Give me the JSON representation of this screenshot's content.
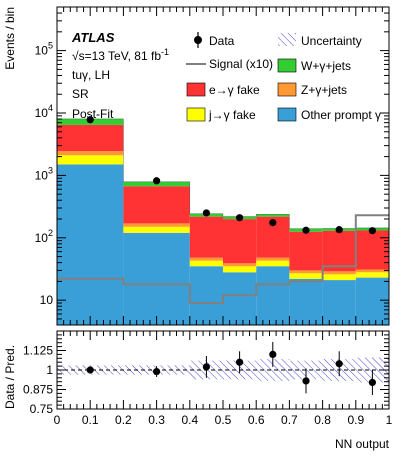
{
  "colors": {
    "other_prompt": "#3a9fd6",
    "jet_fake": "#ffff00",
    "zgamma": "#ff9933",
    "efake": "#ff3333",
    "wgamma": "#33cc33",
    "signal": "#808080",
    "uncertainty": "#3333cc",
    "data": "#000000"
  },
  "labels": {
    "atlas": "ATLAS",
    "energy_prefix": "√s=13 TeV, 81 fb",
    "energy_sup": "-1",
    "channel": "tuγ, LH",
    "region": "SR",
    "fit": "Post-Fit"
  },
  "legend": {
    "data": "Data",
    "uncertainty": "Uncertainty",
    "signal": "Signal (x10)",
    "wgamma": "W+γ+jets",
    "efake": "e→γ fake",
    "zgamma": "Z+γ+jets",
    "jetfake": "j→γ fake",
    "other": "Other prompt γ"
  },
  "chart_data": [
    {
      "type": "bar",
      "stacked": true,
      "log_y": true,
      "ylabel": "Events / bin",
      "ylim": [
        4,
        500000
      ],
      "xlim": [
        0,
        1
      ],
      "y_ticks": [
        {
          "value": 10,
          "label": "10"
        },
        {
          "value": 100,
          "label": "10",
          "sup": "2"
        },
        {
          "value": 1000,
          "label": "10",
          "sup": "3"
        },
        {
          "value": 10000,
          "label": "10",
          "sup": "4"
        },
        {
          "value": 100000,
          "label": "10",
          "sup": "5"
        }
      ],
      "bin_edges": [
        0,
        0.2,
        0.4,
        0.5,
        0.6,
        0.7,
        0.8,
        0.9,
        1.0
      ],
      "series": [
        {
          "name": "Other prompt γ",
          "color": "#3a9fd6",
          "values": [
            1500,
            120,
            35,
            28,
            35,
            22,
            21,
            23
          ]
        },
        {
          "name": "j→γ fake",
          "color": "#ffff00",
          "values": [
            600,
            30,
            8,
            7,
            8,
            5,
            5,
            5
          ]
        },
        {
          "name": "Z+γ+jets",
          "color": "#ff9933",
          "values": [
            350,
            20,
            5,
            4,
            5,
            3,
            3,
            3
          ]
        },
        {
          "name": "e→γ fake",
          "color": "#ff3333",
          "values": [
            4000,
            500,
            170,
            160,
            170,
            95,
            100,
            100
          ]
        },
        {
          "name": "W+γ+jets",
          "color": "#33cc33",
          "values": [
            1600,
            120,
            25,
            20,
            20,
            15,
            12,
            13
          ]
        }
      ],
      "signal": {
        "name": "Signal (x10)",
        "values": [
          22,
          18,
          9,
          12,
          18,
          20,
          35,
          230
        ]
      },
      "data_points": {
        "name": "Data",
        "x": [
          0.1,
          0.3,
          0.45,
          0.55,
          0.65,
          0.75,
          0.85,
          0.95
        ],
        "y": [
          7800,
          820,
          250,
          210,
          175,
          132,
          135,
          130
        ]
      }
    },
    {
      "type": "scatter",
      "ylabel": "Data / Pred.",
      "xlabel": "NN output",
      "ylim": [
        0.75,
        1.25
      ],
      "xlim": [
        0,
        1
      ],
      "y_ticks": [
        {
          "value": 0.75,
          "label": "0.75"
        },
        {
          "value": 0.875,
          "label": "0.875"
        },
        {
          "value": 1.0,
          "label": "1"
        },
        {
          "value": 1.125,
          "label": "1.125"
        }
      ],
      "x_ticks": [
        "0",
        "0.1",
        "0.2",
        "0.3",
        "0.4",
        "0.5",
        "0.6",
        "0.7",
        "0.8",
        "0.9",
        "1"
      ],
      "band_halfwidth": [
        0.03,
        0.03,
        0.06,
        0.06,
        0.07,
        0.06,
        0.07,
        0.08
      ],
      "points": {
        "x": [
          0.1,
          0.3,
          0.45,
          0.55,
          0.65,
          0.75,
          0.85,
          0.95
        ],
        "y": [
          1.0,
          0.99,
          1.02,
          1.05,
          1.1,
          0.93,
          1.04,
          0.92
        ],
        "err": [
          0.015,
          0.035,
          0.07,
          0.07,
          0.08,
          0.08,
          0.08,
          0.08
        ]
      }
    }
  ]
}
